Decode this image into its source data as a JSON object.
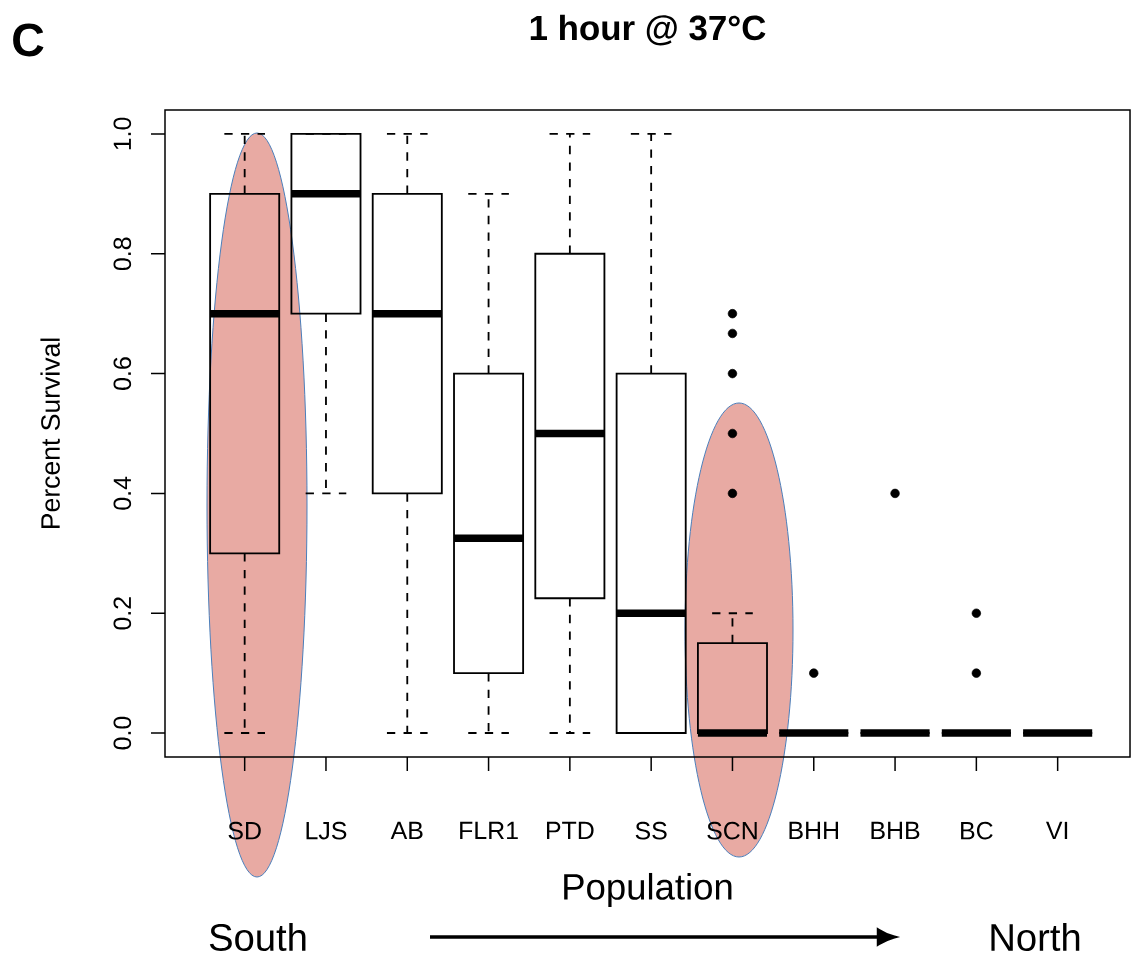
{
  "chart_data": {
    "type": "box",
    "title": "1 hour @ 37°C",
    "xlabel": "Population",
    "ylabel": "Percent Survival",
    "categories": [
      "SD",
      "LJS",
      "AB",
      "FLR1",
      "PTD",
      "SS",
      "SCN",
      "BHH",
      "BHB",
      "BC",
      "VI"
    ],
    "color": "#000000",
    "boxes": [
      {
        "low": 0,
        "q1": 0.3,
        "median": 0.7,
        "q3": 0.9,
        "high": 1.0
      },
      {
        "low": 0.4,
        "q1": 0.7,
        "median": 0.9,
        "q3": 1.0,
        "high": 1.0
      },
      {
        "low": 0,
        "q1": 0.4,
        "median": 0.7,
        "q3": 0.9,
        "high": 1.0
      },
      {
        "low": 0,
        "q1": 0.1,
        "median": 0.325,
        "q3": 0.6,
        "high": 0.9
      },
      {
        "low": 0,
        "q1": 0.225,
        "median": 0.5,
        "q3": 0.8,
        "high": 1.0
      },
      {
        "low": 0,
        "q1": 0,
        "median": 0.2,
        "q3": 0.6,
        "high": 1.0
      },
      {
        "low": 0,
        "q1": 0,
        "median": 0,
        "q3": 0.15,
        "high": 0.2,
        "outliers": [
          0.4,
          0.5,
          0.6,
          0.667,
          0.7
        ]
      },
      {
        "low": 0,
        "q1": 0,
        "median": 0,
        "q3": 0,
        "high": 0,
        "outliers": [
          0.1
        ]
      },
      {
        "low": 0,
        "q1": 0,
        "median": 0,
        "q3": 0,
        "high": 0,
        "outliers": [
          0.4
        ]
      },
      {
        "low": 0,
        "q1": 0,
        "median": 0,
        "q3": 0,
        "high": 0,
        "outliers": [
          0.1,
          0.2
        ]
      },
      {
        "low": 0,
        "q1": 0,
        "median": 0,
        "q3": 0,
        "high": 0
      }
    ],
    "ylim": [
      -0.04,
      1.04
    ],
    "yticks": [
      {
        "value": 0,
        "label": "0.0"
      },
      {
        "value": 0.2,
        "label": "0.2"
      },
      {
        "value": 0.4,
        "label": "0.4"
      },
      {
        "value": 0.6,
        "label": "0.6"
      },
      {
        "value": 0.8,
        "label": "0.8"
      },
      {
        "value": 1.0,
        "label": "1.0"
      }
    ],
    "annotations": [
      "C",
      "South",
      "North"
    ]
  }
}
